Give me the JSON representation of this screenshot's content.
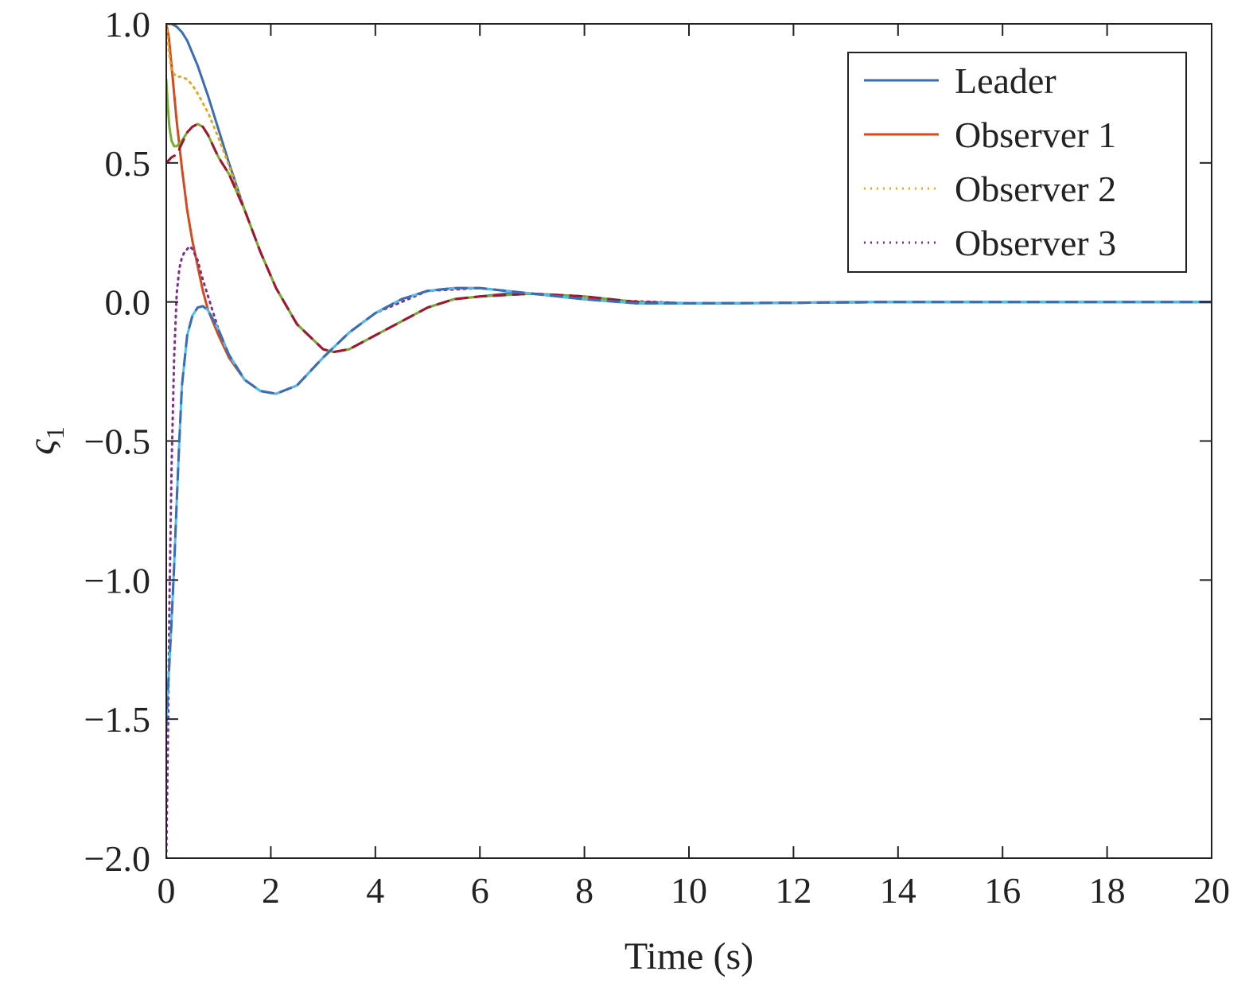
{
  "chart_data": {
    "type": "line",
    "title": "",
    "xlabel": "Time (s)",
    "ylabel": "ς",
    "ylabel_subscript": "1",
    "xlim": [
      0,
      20
    ],
    "ylim": [
      -2.0,
      1.0
    ],
    "xticks": [
      0,
      2,
      4,
      6,
      8,
      10,
      12,
      14,
      16,
      18,
      20
    ],
    "yticks": [
      1.0,
      0.5,
      0.0,
      -0.5,
      -1.0,
      -1.5,
      -2.0
    ],
    "ytick_labels": [
      "1.0",
      "0.5",
      "0.0",
      "−0.5",
      "−1.0",
      "−1.5",
      "−2.0"
    ],
    "grid": false,
    "legend_position": "top-right",
    "series": [
      {
        "name": "Leader",
        "color": "#3a6db5",
        "style": "solid",
        "x": [
          0,
          0.1,
          0.2,
          0.3,
          0.4,
          0.6,
          0.8,
          1.0,
          1.2,
          1.5,
          1.8,
          2.1,
          2.5,
          3.0,
          3.2,
          3.5,
          4.0,
          4.5,
          5.0,
          5.5,
          6.0,
          6.5,
          7.0,
          7.5,
          8.0,
          8.5,
          9.0,
          9.5,
          10.0,
          11.0,
          12.0,
          13.0,
          14.0,
          16.0,
          18.0,
          20.0
        ],
        "y": [
          1.0,
          1.0,
          0.99,
          0.97,
          0.94,
          0.85,
          0.74,
          0.62,
          0.5,
          0.33,
          0.18,
          0.05,
          -0.08,
          -0.17,
          -0.18,
          -0.17,
          -0.12,
          -0.07,
          -0.02,
          0.01,
          0.02,
          0.03,
          0.03,
          0.025,
          0.02,
          0.01,
          0.0,
          -0.005,
          -0.005,
          -0.005,
          -0.003,
          0.0,
          0.0,
          0.0,
          0.0,
          0.0
        ]
      },
      {
        "name": "Observer 1",
        "color": "#d44a1c",
        "style": "solid",
        "x": [
          0,
          0.05,
          0.1,
          0.2,
          0.3,
          0.4,
          0.5,
          0.6,
          0.7,
          0.8,
          1.0,
          1.2,
          1.5,
          1.8,
          2.1,
          2.5,
          3.0,
          3.5,
          4.0,
          4.5,
          5.0,
          5.5,
          6.0,
          6.5,
          7.0,
          8.0,
          9.0,
          10.0,
          12.0,
          14.0,
          16.0,
          18.0,
          20.0
        ],
        "y": [
          1.0,
          0.95,
          0.85,
          0.65,
          0.48,
          0.33,
          0.22,
          0.13,
          0.04,
          -0.03,
          -0.12,
          -0.2,
          -0.28,
          -0.32,
          -0.33,
          -0.3,
          -0.2,
          -0.11,
          -0.04,
          0.01,
          0.04,
          0.05,
          0.05,
          0.04,
          0.03,
          0.01,
          -0.005,
          -0.005,
          -0.003,
          0.0,
          0.0,
          0.0,
          0.0
        ]
      },
      {
        "name": "Observer 2",
        "color": "#e5a825",
        "style": "dotted",
        "x": [
          0,
          0.05,
          0.1,
          0.2,
          0.3,
          0.4,
          0.5,
          0.6,
          0.8,
          1.0,
          1.2,
          1.5,
          1.8,
          2.1,
          2.5,
          3.0,
          3.2,
          3.5,
          4.0,
          4.5,
          5.0,
          5.5,
          6.0,
          7.0,
          8.0,
          9.0,
          10.0,
          12.0,
          14.0,
          16.0,
          18.0,
          20.0
        ],
        "y": [
          1.0,
          0.9,
          0.83,
          0.81,
          0.81,
          0.8,
          0.78,
          0.75,
          0.68,
          0.59,
          0.49,
          0.33,
          0.18,
          0.05,
          -0.08,
          -0.17,
          -0.18,
          -0.17,
          -0.12,
          -0.07,
          -0.02,
          0.01,
          0.02,
          0.03,
          0.02,
          0.0,
          -0.005,
          -0.003,
          0.0,
          0.0,
          0.0,
          0.0
        ]
      },
      {
        "name": "Observer 3",
        "color": "#7e2f8e",
        "style": "dotted",
        "x": [
          0,
          0.03,
          0.06,
          0.1,
          0.15,
          0.2,
          0.25,
          0.3,
          0.35,
          0.4,
          0.45,
          0.5,
          0.6,
          0.7,
          0.8,
          1.0,
          1.2,
          1.5,
          1.8,
          2.1,
          2.5,
          3.0,
          3.5,
          4.0,
          5.0,
          6.0,
          7.0,
          8.0,
          10.0,
          12.0,
          14.0,
          16.0,
          18.0,
          20.0
        ],
        "y": [
          -2.0,
          -1.6,
          -1.1,
          -0.6,
          -0.2,
          0.03,
          0.12,
          0.16,
          0.18,
          0.19,
          0.2,
          0.19,
          0.15,
          0.08,
          0.02,
          -0.1,
          -0.19,
          -0.28,
          -0.32,
          -0.33,
          -0.3,
          -0.2,
          -0.11,
          -0.04,
          0.04,
          0.05,
          0.03,
          0.01,
          -0.005,
          -0.003,
          0.0,
          0.0,
          0.0,
          0.0
        ]
      },
      {
        "color": "#77ac30",
        "style": "solid",
        "x": [
          0,
          0.03,
          0.06,
          0.1,
          0.15,
          0.2,
          0.3,
          0.4,
          0.5,
          0.6,
          0.7,
          0.8,
          0.9,
          1.0,
          1.2,
          1.5,
          1.8,
          2.1,
          2.5,
          3.0,
          3.2,
          3.5,
          4.0,
          4.5,
          5.0,
          5.5,
          6.0,
          7.0,
          8.0,
          9.0,
          10.0,
          12.0,
          14.0,
          16.0,
          18.0,
          20.0
        ],
        "y": [
          0.8,
          0.7,
          0.63,
          0.58,
          0.56,
          0.56,
          0.58,
          0.61,
          0.63,
          0.64,
          0.63,
          0.6,
          0.56,
          0.52,
          0.46,
          0.33,
          0.18,
          0.05,
          -0.08,
          -0.17,
          -0.18,
          -0.17,
          -0.12,
          -0.07,
          -0.02,
          0.01,
          0.02,
          0.03,
          0.02,
          0.0,
          -0.005,
          -0.003,
          0.0,
          0.0,
          0.0,
          0.0
        ]
      },
      {
        "color": "#a2142f",
        "style": "dashed",
        "x": [
          0,
          0.05,
          0.1,
          0.2,
          0.3,
          0.4,
          0.5,
          0.6,
          0.7,
          0.8,
          0.9,
          1.0,
          1.2,
          1.5,
          1.8,
          2.1,
          2.5,
          3.0,
          3.2,
          3.5,
          4.0,
          4.5,
          5.0,
          5.5,
          6.0,
          7.0,
          8.0,
          9.0,
          10.0,
          12.0,
          14.0,
          16.0,
          18.0,
          20.0
        ],
        "y": [
          0.5,
          0.51,
          0.52,
          0.53,
          0.57,
          0.61,
          0.63,
          0.64,
          0.63,
          0.6,
          0.56,
          0.52,
          0.46,
          0.33,
          0.18,
          0.05,
          -0.08,
          -0.17,
          -0.18,
          -0.17,
          -0.12,
          -0.07,
          -0.02,
          0.01,
          0.02,
          0.03,
          0.02,
          0.0,
          -0.005,
          -0.003,
          0.0,
          0.0,
          0.0,
          0.0
        ]
      },
      {
        "color": "#4dbeee",
        "style": "solid",
        "x": [
          0,
          0.03,
          0.06,
          0.1,
          0.15,
          0.2,
          0.25,
          0.3,
          0.4,
          0.5,
          0.6,
          0.7,
          0.8,
          1.0,
          1.2,
          1.5,
          1.8,
          2.1,
          2.5,
          3.0,
          3.5,
          4.0,
          4.5,
          5.0,
          5.5,
          6.0,
          6.5,
          7.0,
          8.0,
          9.0,
          10.0,
          12.0,
          14.0,
          16.0,
          18.0,
          20.0
        ],
        "y": [
          -1.5,
          -1.4,
          -1.3,
          -1.15,
          -0.95,
          -0.72,
          -0.5,
          -0.3,
          -0.12,
          -0.05,
          -0.02,
          -0.015,
          -0.03,
          -0.1,
          -0.19,
          -0.28,
          -0.32,
          -0.33,
          -0.3,
          -0.2,
          -0.11,
          -0.04,
          0.01,
          0.04,
          0.05,
          0.05,
          0.04,
          0.03,
          0.01,
          -0.005,
          -0.005,
          -0.003,
          0.0,
          0.0,
          0.0,
          0.0
        ]
      },
      {
        "color": "#3a6db5",
        "style": "dashed",
        "x": [
          0,
          0.03,
          0.06,
          0.1,
          0.15,
          0.2,
          0.25,
          0.3,
          0.4,
          0.5,
          0.6,
          0.7,
          0.8,
          1.0,
          1.2,
          1.5,
          1.8,
          2.1,
          2.5,
          3.0,
          3.5,
          4.0,
          4.5,
          5.0,
          5.5,
          6.0,
          6.5,
          7.0,
          8.0,
          9.0,
          10.0,
          12.0,
          14.0,
          16.0,
          18.0,
          20.0
        ],
        "y": [
          -1.53,
          -1.4,
          -1.3,
          -1.15,
          -0.95,
          -0.72,
          -0.5,
          -0.3,
          -0.12,
          -0.05,
          -0.02,
          -0.015,
          -0.03,
          -0.1,
          -0.19,
          -0.28,
          -0.32,
          -0.33,
          -0.3,
          -0.2,
          -0.11,
          -0.04,
          0.01,
          0.04,
          0.05,
          0.05,
          0.04,
          0.03,
          0.01,
          -0.005,
          -0.005,
          -0.003,
          0.0,
          0.0,
          0.0,
          0.0
        ]
      }
    ]
  }
}
